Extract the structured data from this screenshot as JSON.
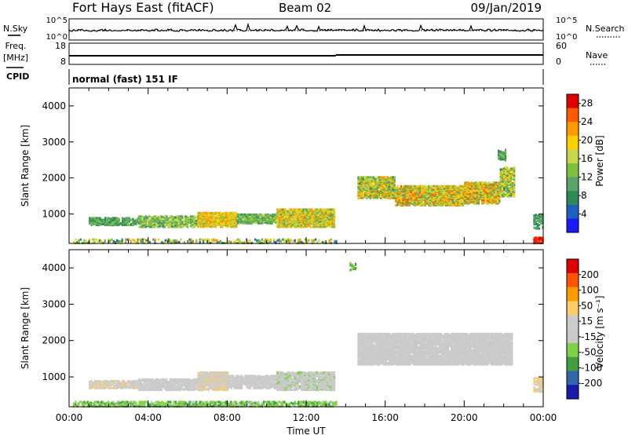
{
  "header": {
    "station": "Fort Hays East (fitACF)",
    "beam": "Beam 02",
    "date": "09/Jan/2019"
  },
  "top_panels": {
    "nsky_label": "N.Sky",
    "nsearch_label": "N.Search",
    "noise_ticks": [
      "10^5",
      "10^0"
    ],
    "freq_label": "Freq.",
    "freq_unit": "[MHz]",
    "freq_ticks": [
      "18",
      "8"
    ],
    "nave_label": "Nave",
    "nave_ticks": [
      "60",
      "0"
    ],
    "cpid_label": "CPID",
    "cpid_text": "normal (fast) 151 IF"
  },
  "colors": {
    "power": [
      "#1a1aff",
      "#1f5fbf",
      "#2e8b57",
      "#5aa469",
      "#7fbf3f",
      "#c8d64a",
      "#ffd000",
      "#ff9a00",
      "#ff5a00",
      "#e00000"
    ],
    "velocity": [
      "#e00000",
      "#ff5500",
      "#ff9a00",
      "#ffcc66",
      "#cccccc",
      "#c9c9c9",
      "#80d04a",
      "#40a040",
      "#3366aa",
      "#1a1aaa"
    ]
  },
  "chart_data": [
    {
      "type": "heatmap",
      "parameter": "Power",
      "ylabel": "Slant Range [km]",
      "xlabel": "",
      "xlim": [
        "00:00",
        "24:00"
      ],
      "ylim": [
        180,
        4500
      ],
      "y_ticks": [
        1000,
        2000,
        3000,
        4000
      ],
      "colorbar": {
        "label": "Power [dB]",
        "ticks": [
          4,
          8,
          12,
          16,
          20,
          24,
          28
        ],
        "range": [
          0,
          30
        ]
      },
      "echo_regions": [
        {
          "t_start_h": 0.2,
          "t_end_h": 13.5,
          "range_start_km": 200,
          "range_end_km": 320,
          "value_min": 4,
          "value_max": 24,
          "density": 0.35
        },
        {
          "t_start_h": 1.0,
          "t_end_h": 3.5,
          "range_start_km": 700,
          "range_end_km": 900,
          "value_min": 6,
          "value_max": 14,
          "density": 0.7
        },
        {
          "t_start_h": 3.5,
          "t_end_h": 6.5,
          "range_start_km": 650,
          "range_end_km": 950,
          "value_min": 8,
          "value_max": 18,
          "density": 0.7
        },
        {
          "t_start_h": 6.5,
          "t_end_h": 8.5,
          "range_start_km": 650,
          "range_end_km": 1050,
          "value_min": 12,
          "value_max": 24,
          "density": 0.85
        },
        {
          "t_start_h": 8.5,
          "t_end_h": 10.5,
          "range_start_km": 750,
          "range_end_km": 1000,
          "value_min": 8,
          "value_max": 16,
          "density": 0.75
        },
        {
          "t_start_h": 10.5,
          "t_end_h": 13.4,
          "range_start_km": 650,
          "range_end_km": 1150,
          "value_min": 10,
          "value_max": 24,
          "density": 0.85
        },
        {
          "t_start_h": 14.6,
          "t_end_h": 16.5,
          "range_start_km": 1450,
          "range_end_km": 2050,
          "value_min": 8,
          "value_max": 24,
          "density": 0.8
        },
        {
          "t_start_h": 16.5,
          "t_end_h": 20.0,
          "range_start_km": 1250,
          "range_end_km": 1800,
          "value_min": 10,
          "value_max": 26,
          "density": 0.85
        },
        {
          "t_start_h": 20.0,
          "t_end_h": 21.8,
          "range_start_km": 1300,
          "range_end_km": 1900,
          "value_min": 10,
          "value_max": 26,
          "density": 0.85
        },
        {
          "t_start_h": 21.8,
          "t_end_h": 22.5,
          "range_start_km": 1500,
          "range_end_km": 2300,
          "value_min": 8,
          "value_max": 22,
          "density": 0.7
        },
        {
          "t_start_h": 21.7,
          "t_end_h": 22.1,
          "range_start_km": 2500,
          "range_end_km": 2800,
          "value_min": 6,
          "value_max": 14,
          "density": 0.6
        },
        {
          "t_start_h": 23.5,
          "t_end_h": 24.0,
          "range_start_km": 200,
          "range_end_km": 350,
          "value_min": 24,
          "value_max": 30,
          "density": 0.9
        },
        {
          "t_start_h": 23.5,
          "t_end_h": 24.0,
          "range_start_km": 600,
          "range_end_km": 1000,
          "value_min": 6,
          "value_max": 12,
          "density": 0.5
        }
      ]
    },
    {
      "type": "heatmap",
      "parameter": "Velocity",
      "ylabel": "Slant Range [km]",
      "xlabel": "Time UT",
      "xlim": [
        "00:00",
        "24:00"
      ],
      "x_ticks": [
        "00:00",
        "04:00",
        "08:00",
        "12:00",
        "16:00",
        "20:00",
        "00:00"
      ],
      "ylim": [
        180,
        4500
      ],
      "y_ticks": [
        1000,
        2000,
        3000,
        4000
      ],
      "colorbar": {
        "label": "Velocity [m s⁻¹]",
        "ticks": [
          200,
          100,
          50,
          15,
          -15,
          -50,
          -100,
          -200
        ],
        "range": [
          -250,
          250
        ]
      },
      "echo_regions": [
        {
          "t_start_h": 0.2,
          "t_end_h": 13.5,
          "range_start_km": 200,
          "range_end_km": 330,
          "value_min": -120,
          "value_max": -40,
          "density": 0.6
        },
        {
          "t_start_h": 1.0,
          "t_end_h": 3.5,
          "range_start_km": 700,
          "range_end_km": 900,
          "value_min": 20,
          "value_max": 60,
          "density": 0.7
        },
        {
          "t_start_h": 3.5,
          "t_end_h": 6.5,
          "range_start_km": 650,
          "range_end_km": 950,
          "value_min": -10,
          "value_max": 10,
          "density": 0.75
        },
        {
          "t_start_h": 6.5,
          "t_end_h": 8.0,
          "range_start_km": 650,
          "range_end_km": 1150,
          "value_min": 20,
          "value_max": 60,
          "density": 0.85
        },
        {
          "t_start_h": 8.0,
          "t_end_h": 10.5,
          "range_start_km": 700,
          "range_end_km": 1050,
          "value_min": -10,
          "value_max": 10,
          "density": 0.75
        },
        {
          "t_start_h": 10.5,
          "t_end_h": 13.4,
          "range_start_km": 650,
          "range_end_km": 1150,
          "value_min": -60,
          "value_max": 10,
          "density": 0.8
        },
        {
          "t_start_h": 14.6,
          "t_end_h": 22.4,
          "range_start_km": 1350,
          "range_end_km": 2200,
          "value_min": -12,
          "value_max": 12,
          "density": 0.85
        },
        {
          "t_start_h": 23.5,
          "t_end_h": 24.0,
          "range_start_km": 600,
          "range_end_km": 1000,
          "value_min": 30,
          "value_max": 70,
          "density": 0.6
        },
        {
          "t_start_h": 14.2,
          "t_end_h": 14.5,
          "range_start_km": 3950,
          "range_end_km": 4150,
          "value_min": -150,
          "value_max": -60,
          "density": 0.6
        }
      ]
    }
  ],
  "time_axis_label": "Time UT",
  "time_ticks": [
    "00:00",
    "04:00",
    "08:00",
    "12:00",
    "16:00",
    "20:00",
    "00:00"
  ]
}
